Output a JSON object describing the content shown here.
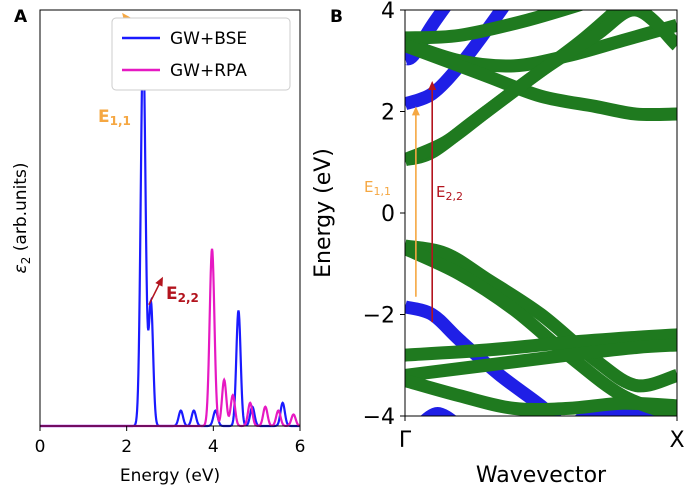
{
  "colors": {
    "bse": "#1a1aff",
    "rpa": "#e619c2",
    "band_blue": "#1f1fe6",
    "band_green": "#1f7a1f",
    "e11": "#f5a742",
    "e22": "#b3141e",
    "axis": "#000000"
  },
  "chart_data": [
    {
      "panel_label": "A",
      "type": "line",
      "xlabel": "Energy (eV)",
      "ylabel_symbol": "ε",
      "ylabel_subscript": "2",
      "ylabel_rest": " (arb.units)",
      "xlim": [
        0,
        6
      ],
      "ylim": [
        0,
        1.08
      ],
      "xticks": [
        "0",
        "2",
        "4",
        "6"
      ],
      "legend_position": "top-right",
      "series": [
        {
          "name": "GW+BSE",
          "color_key": "bse",
          "peaks": [
            [
              2.38,
              1.0,
              0.055
            ],
            [
              2.56,
              0.32,
              0.05
            ],
            [
              3.25,
              0.04,
              0.05
            ],
            [
              3.55,
              0.04,
              0.05
            ],
            [
              4.05,
              0.04,
              0.05
            ],
            [
              4.58,
              0.3,
              0.05
            ],
            [
              4.9,
              0.05,
              0.05
            ],
            [
              5.6,
              0.06,
              0.05
            ]
          ]
        },
        {
          "name": "GW+RPA",
          "color_key": "rpa",
          "peaks": [
            [
              3.97,
              0.46,
              0.055
            ],
            [
              4.25,
              0.12,
              0.05
            ],
            [
              4.45,
              0.08,
              0.05
            ],
            [
              4.85,
              0.06,
              0.05
            ],
            [
              5.2,
              0.05,
              0.05
            ],
            [
              5.5,
              0.04,
              0.05
            ],
            [
              5.85,
              0.03,
              0.05
            ]
          ]
        }
      ],
      "annotations": [
        {
          "label": "E",
          "subscript": "1,1",
          "color_key": "e11",
          "x": 2.38,
          "y": 1.0
        },
        {
          "label": "E",
          "subscript": "2,2",
          "color_key": "e22",
          "x": 2.56,
          "y": 0.32
        }
      ]
    },
    {
      "panel_label": "B",
      "type": "line",
      "xlabel": "Wavevector",
      "ylabel": "Energy (eV)",
      "xlim": [
        0,
        1
      ],
      "ylim": [
        -4,
        4
      ],
      "yticks": [
        "4",
        "2",
        "0",
        "−2",
        "−4"
      ],
      "xticks": [
        "Γ",
        "X"
      ],
      "series": [
        {
          "name": "blue band 1",
          "color_key": "band_blue",
          "points": [
            [
              0,
              3.05
            ],
            [
              0.03,
              3.1
            ],
            [
              0.1,
              3.7
            ],
            [
              0.18,
              4.3
            ]
          ]
        },
        {
          "name": "blue band 2",
          "color_key": "band_blue",
          "points": [
            [
              0,
              2.15
            ],
            [
              0.1,
              2.35
            ],
            [
              0.2,
              2.9
            ],
            [
              0.3,
              3.6
            ],
            [
              0.38,
              4.2
            ]
          ]
        },
        {
          "name": "blue band 3",
          "color_key": "band_blue",
          "points": [
            [
              0,
              -1.85
            ],
            [
              0.1,
              -2.0
            ],
            [
              0.2,
              -2.5
            ],
            [
              0.35,
              -3.2
            ],
            [
              0.5,
              -3.8
            ],
            [
              0.58,
              -4.2
            ]
          ]
        },
        {
          "name": "blue band 4",
          "color_key": "band_blue",
          "points": [
            [
              0.6,
              -4.3
            ],
            [
              0.68,
              -3.95
            ],
            [
              0.8,
              -3.88
            ],
            [
              1,
              -3.88
            ]
          ]
        },
        {
          "name": "blue band 5",
          "color_key": "band_blue",
          "points": [
            [
              0.05,
              -4.2
            ],
            [
              0.12,
              -3.95
            ],
            [
              0.2,
              -4.2
            ]
          ]
        },
        {
          "name": "green band 1",
          "color_key": "band_green",
          "points": [
            [
              0,
              3.45
            ],
            [
              0.2,
              3.5
            ],
            [
              0.45,
              3.8
            ],
            [
              0.7,
              4.2
            ]
          ]
        },
        {
          "name": "green band 2",
          "color_key": "band_green",
          "points": [
            [
              0,
              3.35
            ],
            [
              0.2,
              3.0
            ],
            [
              0.4,
              2.9
            ],
            [
              0.6,
              3.1
            ],
            [
              0.8,
              3.4
            ],
            [
              1,
              3.7
            ]
          ]
        },
        {
          "name": "green band 3",
          "color_key": "band_green",
          "points": [
            [
              0,
              3.3
            ],
            [
              0.3,
              2.7
            ],
            [
              0.5,
              2.3
            ],
            [
              0.7,
              2.1
            ],
            [
              0.85,
              1.95
            ],
            [
              1,
              1.95
            ]
          ]
        },
        {
          "name": "green band 4",
          "color_key": "band_green",
          "points": [
            [
              0,
              1.05
            ],
            [
              0.1,
              1.2
            ],
            [
              0.25,
              1.8
            ],
            [
              0.45,
              2.6
            ],
            [
              0.65,
              3.4
            ],
            [
              0.82,
              4.2
            ]
          ]
        },
        {
          "name": "green band 5",
          "color_key": "band_green",
          "points": [
            [
              0,
              1.05
            ],
            [
              0.15,
              1.4
            ],
            [
              0.3,
              2.0
            ],
            [
              0.5,
              2.8
            ],
            [
              0.7,
              3.5
            ],
            [
              0.85,
              4.0
            ],
            [
              1,
              3.3
            ]
          ]
        },
        {
          "name": "green band 6",
          "color_key": "band_green",
          "points": [
            [
              0,
              -0.65
            ],
            [
              0.15,
              -0.8
            ],
            [
              0.3,
              -1.3
            ],
            [
              0.5,
              -2.0
            ],
            [
              0.7,
              -2.9
            ],
            [
              0.85,
              -3.4
            ],
            [
              1,
              -3.2
            ]
          ]
        },
        {
          "name": "green band 7",
          "color_key": "band_green",
          "points": [
            [
              0,
              -0.7
            ],
            [
              0.2,
              -1.2
            ],
            [
              0.4,
              -1.9
            ],
            [
              0.6,
              -2.8
            ],
            [
              0.8,
              -3.6
            ],
            [
              1,
              -4.0
            ]
          ]
        },
        {
          "name": "green band 8",
          "color_key": "band_green",
          "points": [
            [
              0,
              -2.8
            ],
            [
              0.3,
              -2.7
            ],
            [
              0.6,
              -2.55
            ],
            [
              0.85,
              -2.45
            ],
            [
              1,
              -2.4
            ]
          ]
        },
        {
          "name": "green band 9",
          "color_key": "band_green",
          "points": [
            [
              0,
              -3.2
            ],
            [
              0.3,
              -3.0
            ],
            [
              0.6,
              -2.8
            ],
            [
              0.85,
              -2.65
            ],
            [
              1,
              -2.6
            ]
          ]
        },
        {
          "name": "green band 10",
          "color_key": "band_green",
          "points": [
            [
              0,
              -3.3
            ],
            [
              0.2,
              -3.6
            ],
            [
              0.4,
              -3.85
            ],
            [
              0.6,
              -3.85
            ],
            [
              0.8,
              -3.75
            ],
            [
              1,
              -3.8
            ]
          ]
        }
      ],
      "annotations": [
        {
          "label": "E",
          "subscript": "1,1",
          "color_key": "e11",
          "x": 0.04,
          "y_from": -1.65,
          "y_to": 2.1
        },
        {
          "label": "E",
          "subscript": "2,2",
          "color_key": "e22",
          "x": 0.1,
          "y_from": -2.15,
          "y_to": 2.6
        }
      ]
    }
  ]
}
